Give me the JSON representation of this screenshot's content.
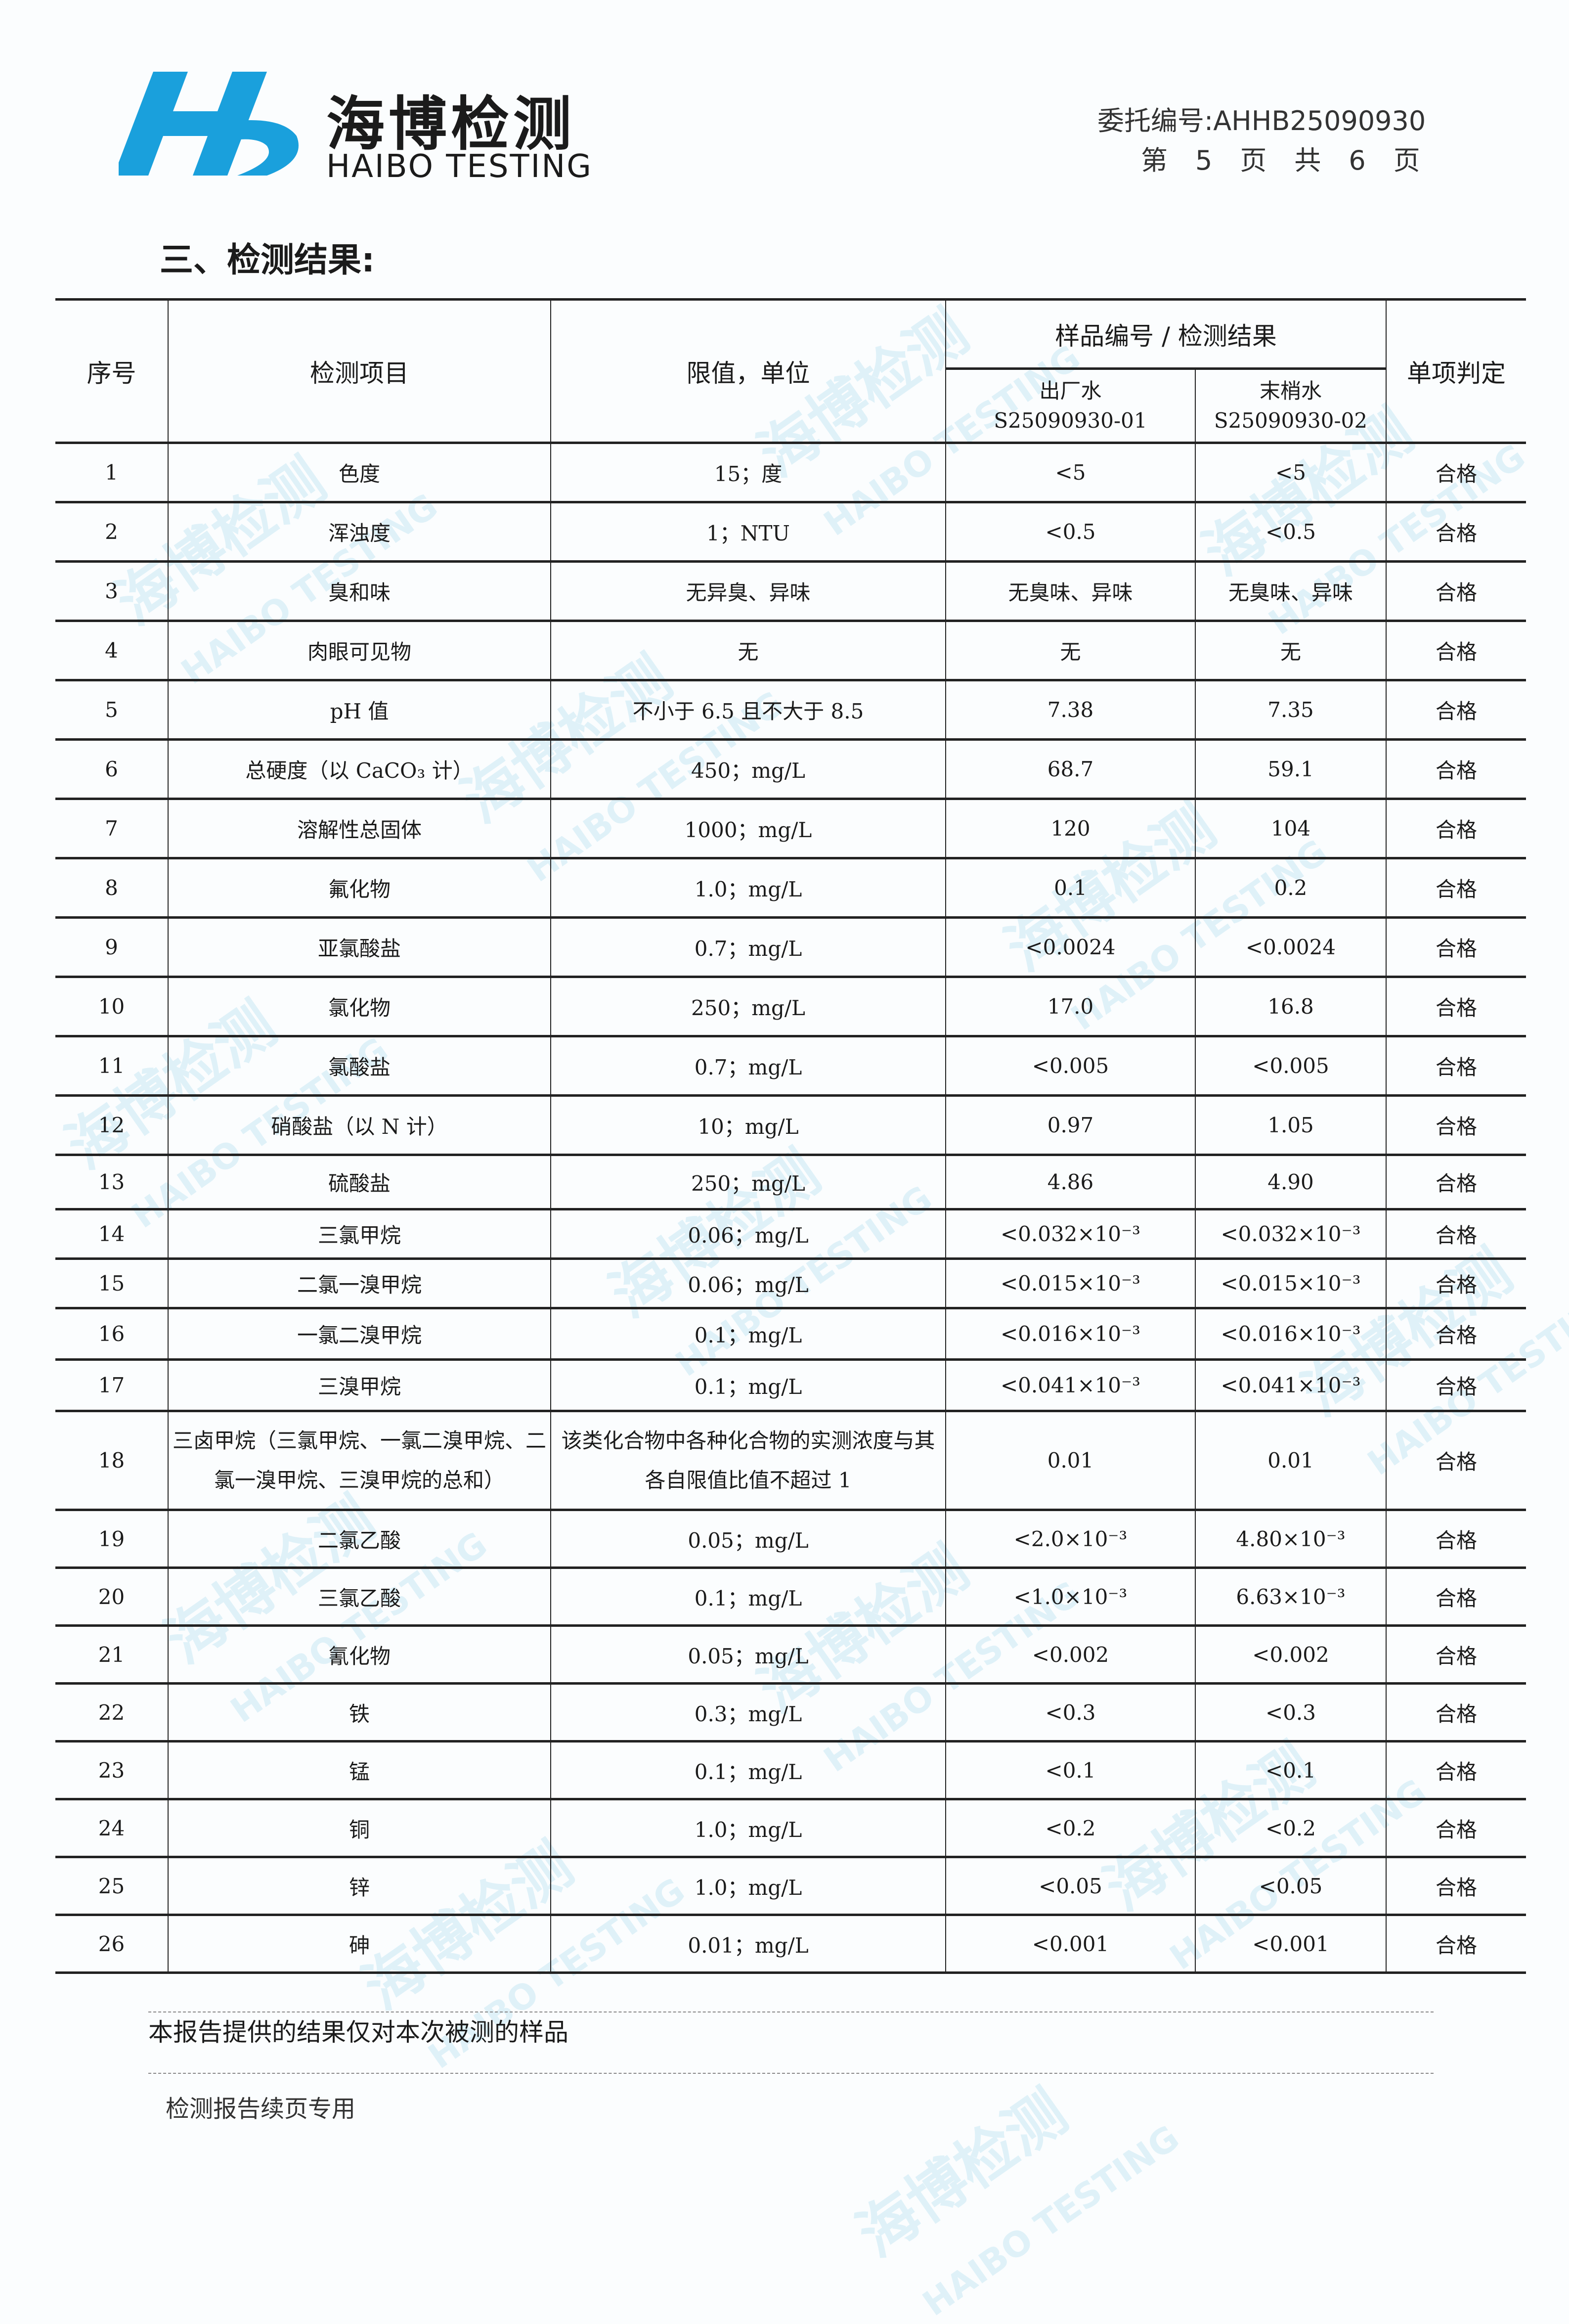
{
  "header": {
    "logo_cn": "海博检测",
    "logo_en": "HAIBO TESTING",
    "entrust_label": "委托编号:",
    "entrust_no": "AHHB25090930",
    "page_prefix": "第",
    "page_no": "5",
    "page_unit": "页",
    "total_prefix": "共",
    "total_pages": "6",
    "total_unit": "页"
  },
  "section_title": "三、检测结果:",
  "colors": {
    "brand_blue": "#1aa0dc",
    "watermark": "#d6eef7"
  },
  "table": {
    "headers": {
      "no": "序号",
      "item": "检测项目",
      "limit": "限值，单位",
      "sample_group": "样品编号 / 检测结果",
      "sample1_name": "出厂水",
      "sample1_id": "S25090930-01",
      "sample2_name": "末梢水",
      "sample2_id": "S25090930-02",
      "verdict": "单项判定"
    },
    "rows": [
      {
        "no": "1",
        "item": "色度",
        "limit": "15；度",
        "s1": "<5",
        "s2": "<5",
        "verdict": "合格"
      },
      {
        "no": "2",
        "item": "浑浊度",
        "limit": "1；NTU",
        "s1": "<0.5",
        "s2": "<0.5",
        "verdict": "合格"
      },
      {
        "no": "3",
        "item": "臭和味",
        "limit": "无异臭、异味",
        "s1": "无臭味、异味",
        "s2": "无臭味、异味",
        "verdict": "合格"
      },
      {
        "no": "4",
        "item": "肉眼可见物",
        "limit": "无",
        "s1": "无",
        "s2": "无",
        "verdict": "合格"
      },
      {
        "no": "5",
        "item": "pH 值",
        "limit": "不小于 6.5 且不大于 8.5",
        "s1": "7.38",
        "s2": "7.35",
        "verdict": "合格"
      },
      {
        "no": "6",
        "item": "总硬度（以 CaCO₃ 计）",
        "limit": "450；mg/L",
        "s1": "68.7",
        "s2": "59.1",
        "verdict": "合格"
      },
      {
        "no": "7",
        "item": "溶解性总固体",
        "limit": "1000；mg/L",
        "s1": "120",
        "s2": "104",
        "verdict": "合格"
      },
      {
        "no": "8",
        "item": "氟化物",
        "limit": "1.0；mg/L",
        "s1": "0.1",
        "s2": "0.2",
        "verdict": "合格"
      },
      {
        "no": "9",
        "item": "亚氯酸盐",
        "limit": "0.7；mg/L",
        "s1": "<0.0024",
        "s2": "<0.0024",
        "verdict": "合格"
      },
      {
        "no": "10",
        "item": "氯化物",
        "limit": "250；mg/L",
        "s1": "17.0",
        "s2": "16.8",
        "verdict": "合格"
      },
      {
        "no": "11",
        "item": "氯酸盐",
        "limit": "0.7；mg/L",
        "s1": "<0.005",
        "s2": "<0.005",
        "verdict": "合格"
      },
      {
        "no": "12",
        "item": "硝酸盐（以 N 计）",
        "limit": "10；mg/L",
        "s1": "0.97",
        "s2": "1.05",
        "verdict": "合格"
      },
      {
        "no": "13",
        "item": "硫酸盐",
        "limit": "250；mg/L",
        "s1": "4.86",
        "s2": "4.90",
        "verdict": "合格"
      },
      {
        "no": "14",
        "item": "三氯甲烷",
        "limit": "0.06；mg/L",
        "s1": "<0.032×10⁻³",
        "s2": "<0.032×10⁻³",
        "verdict": "合格"
      },
      {
        "no": "15",
        "item": "二氯一溴甲烷",
        "limit": "0.06；mg/L",
        "s1": "<0.015×10⁻³",
        "s2": "<0.015×10⁻³",
        "verdict": "合格"
      },
      {
        "no": "16",
        "item": "一氯二溴甲烷",
        "limit": "0.1；mg/L",
        "s1": "<0.016×10⁻³",
        "s2": "<0.016×10⁻³",
        "verdict": "合格"
      },
      {
        "no": "17",
        "item": "三溴甲烷",
        "limit": "0.1；mg/L",
        "s1": "<0.041×10⁻³",
        "s2": "<0.041×10⁻³",
        "verdict": "合格"
      },
      {
        "no": "18",
        "item": "三卤甲烷（三氯甲烷、一氯二溴甲烷、二氯一溴甲烷、三溴甲烷的总和）",
        "limit": "该类化合物中各种化合物的实测浓度与其各自限值比值不超过 1",
        "s1": "0.01",
        "s2": "0.01",
        "verdict": "合格"
      },
      {
        "no": "19",
        "item": "二氯乙酸",
        "limit": "0.05；mg/L",
        "s1": "<2.0×10⁻³",
        "s2": "4.80×10⁻³",
        "verdict": "合格"
      },
      {
        "no": "20",
        "item": "三氯乙酸",
        "limit": "0.1；mg/L",
        "s1": "<1.0×10⁻³",
        "s2": "6.63×10⁻³",
        "verdict": "合格"
      },
      {
        "no": "21",
        "item": "氰化物",
        "limit": "0.05；mg/L",
        "s1": "<0.002",
        "s2": "<0.002",
        "verdict": "合格"
      },
      {
        "no": "22",
        "item": "铁",
        "limit": "0.3；mg/L",
        "s1": "<0.3",
        "s2": "<0.3",
        "verdict": "合格"
      },
      {
        "no": "23",
        "item": "锰",
        "limit": "0.1；mg/L",
        "s1": "<0.1",
        "s2": "<0.1",
        "verdict": "合格"
      },
      {
        "no": "24",
        "item": "铜",
        "limit": "1.0；mg/L",
        "s1": "<0.2",
        "s2": "<0.2",
        "verdict": "合格"
      },
      {
        "no": "25",
        "item": "锌",
        "limit": "1.0；mg/L",
        "s1": "<0.05",
        "s2": "<0.05",
        "verdict": "合格"
      },
      {
        "no": "26",
        "item": "砷",
        "limit": "0.01；mg/L",
        "s1": "<0.001",
        "s2": "<0.001",
        "verdict": "合格"
      }
    ]
  },
  "footer": {
    "note": "本报告提供的结果仅对本次被测的样品",
    "continuation": "检测报告续页专用"
  }
}
